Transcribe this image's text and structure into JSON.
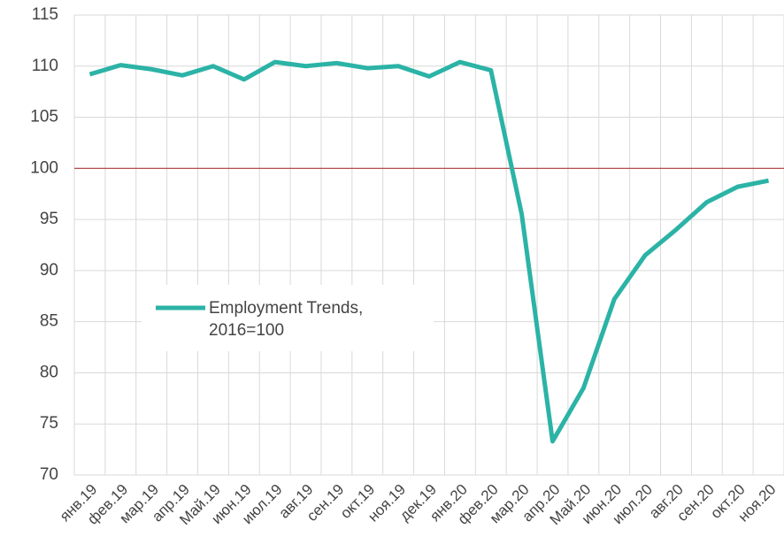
{
  "chart_data": {
    "type": "line",
    "categories": [
      "янв.19",
      "фев.19",
      "мар.19",
      "апр.19",
      "Май.19",
      "июн.19",
      "июл.19",
      "авг.19",
      "сен.19",
      "окт.19",
      "ноя.19",
      "дек.19",
      "янв.20",
      "фев.20",
      "мар.20",
      "апр.20",
      "Май.20",
      "июн.20",
      "июл.20",
      "авг.20",
      "сен.20",
      "окт.20",
      "ноя.20"
    ],
    "series": [
      {
        "name": "Employment Trends, 2016=100",
        "color": "#2bb3a6",
        "values": [
          109.2,
          110.1,
          109.7,
          109.1,
          110.0,
          108.7,
          110.4,
          110.0,
          110.3,
          109.8,
          110.0,
          109.0,
          110.4,
          109.6,
          95.5,
          73.3,
          78.5,
          87.2,
          91.5,
          94.0,
          96.7,
          98.2,
          98.8
        ]
      }
    ],
    "ylim": [
      70,
      115
    ],
    "yticks": [
      70,
      75,
      80,
      85,
      90,
      95,
      100,
      105,
      110,
      115
    ],
    "grid": true,
    "reference_line": 100,
    "reference_color": "#b03a3a",
    "legend": "center-left"
  }
}
